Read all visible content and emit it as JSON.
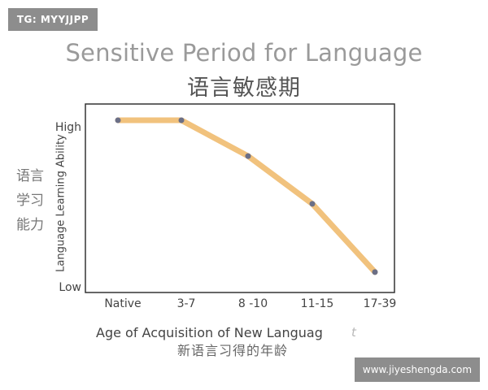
{
  "watermark_tag": "TG: MYYJJPP",
  "watermark_site": "www.jiyeshengda.com",
  "chart_data": {
    "type": "line",
    "title": "Sensitive Period for Language",
    "subtitle": "语言敏感期",
    "xlabel": "Age of Acquisition of New Languag",
    "xlabel_cn": "新语言习得的年龄",
    "xlabel_smear": "t",
    "ylabel": "Language Learning Ability",
    "ylabel_cn": [
      "语言",
      "学习",
      "能力"
    ],
    "y_ticks": [
      "High",
      "Low"
    ],
    "ylim": [
      0,
      1
    ],
    "categories": [
      "Native",
      "3-7",
      "8 -10",
      "11-15",
      "17-39"
    ],
    "series": [
      {
        "values": [
          1.0,
          1.0,
          0.79,
          0.51,
          0.11
        ]
      }
    ],
    "colors": {
      "line": "#f1c27d",
      "marker": "#6b6f86",
      "axis": "#333333"
    },
    "grid": false,
    "legend": "none"
  }
}
